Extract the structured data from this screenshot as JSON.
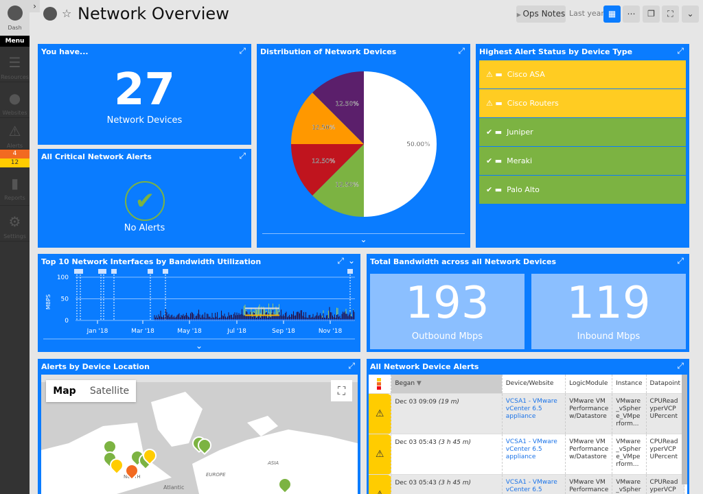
{
  "sidebar": {
    "dash": "Dash",
    "menu": "Menu",
    "items": [
      {
        "label": "Resources",
        "icon": "server-icon"
      },
      {
        "label": "Websites",
        "icon": "globe-icon"
      },
      {
        "label": "Alerts",
        "icon": "warning-icon"
      },
      {
        "label": "Reports",
        "icon": "document-icon"
      },
      {
        "label": "Settings",
        "icon": "gear-icon"
      }
    ],
    "alert_counts": {
      "error": "4",
      "warning": "12"
    }
  },
  "header": {
    "title": "Network Overview",
    "ops_notes": "Ops Notes",
    "time_range": "Last year"
  },
  "widgets": {
    "you_have": {
      "title": "You have...",
      "count": "27",
      "label": "Network Devices"
    },
    "critical": {
      "title": "All Critical Network Alerts",
      "status": "No Alerts"
    },
    "distribution": {
      "title": "Distribution of Network Devices"
    },
    "highest": {
      "title": "Highest Alert Status by Device Type",
      "rows": [
        {
          "name": "Cisco ASA",
          "status": "warning"
        },
        {
          "name": "Cisco Routers",
          "status": "warning"
        },
        {
          "name": "Juniper",
          "status": "ok"
        },
        {
          "name": "Meraki",
          "status": "ok"
        },
        {
          "name": "Palo Alto",
          "status": "ok"
        }
      ]
    },
    "top10": {
      "title": "Top 10 Network Interfaces by Bandwidth Utilization"
    },
    "total_bw": {
      "title": "Total Bandwidth across all Network Devices",
      "outbound": "193",
      "outbound_label": "Outbound Mbps",
      "inbound": "119",
      "inbound_label": "Inbound Mbps"
    },
    "map": {
      "title": "Alerts by Device Location",
      "map_btn": "Map",
      "satellite_btn": "Satellite",
      "labels": [
        "EUROPE",
        "ASIA",
        "NORTH",
        "Atlantic"
      ]
    },
    "alerts": {
      "title": "All Network Device Alerts",
      "columns": [
        "Began",
        "Device/Website",
        "LogicModule",
        "Instance",
        "Datapoint"
      ],
      "rows": [
        {
          "began": "Dec 03 09:09",
          "ago": "(19 m)",
          "device": "VCSA1 - VMware vCenter 6.5 appliance",
          "module": "VMware VM Performance w/Datastore",
          "instance": "VMware_vSphere_VMperform...",
          "datapoint": "CPUReadyperVCPUPercent"
        },
        {
          "began": "Dec 03 05:43",
          "ago": "(3 h 45 m)",
          "device": "VCSA1 - VMware vCenter 6.5 appliance",
          "module": "VMware VM Performance w/Datastore",
          "instance": "VMware_vSphere_VMperform...",
          "datapoint": "CPUReadyperVCPUPercent"
        },
        {
          "began": "Dec 03 05:43",
          "ago": "(3 h 45 m)",
          "device": "VCSA1 - VMware vCenter 6.5",
          "module": "VMware VM Performance",
          "instance": "VMware_vSpher",
          "datapoint": "CPUReadyperVCP"
        }
      ]
    }
  },
  "colors": {
    "widget": "#0a7cff",
    "warning": "#ffcc22",
    "ok": "#7cb342",
    "error": "#f26a21"
  },
  "chart_data": [
    {
      "type": "pie",
      "title": "Distribution of Network Devices",
      "slices": [
        {
          "label": "50.00%",
          "value": 50,
          "color": "#ffffff"
        },
        {
          "label": "12.50%",
          "value": 12.5,
          "color": "#7cb342"
        },
        {
          "label": "12.50%",
          "value": 12.5,
          "color": "#c0141e"
        },
        {
          "label": "12.50%",
          "value": 12.5,
          "color": "#ff9800"
        },
        {
          "label": "12.50%",
          "value": 12.5,
          "color": "#5b1f6b"
        }
      ]
    },
    {
      "type": "area",
      "title": "Top 10 Network Interfaces by Bandwidth Utilization",
      "ylabel": "MBPS",
      "yticks": [
        "100",
        "50",
        "0"
      ],
      "ylim": [
        0,
        100
      ],
      "xticks": [
        "Jan '18",
        "Mar '18",
        "May '18",
        "Jul '18",
        "Sep '18",
        "Nov '18"
      ],
      "grid": true
    }
  ]
}
